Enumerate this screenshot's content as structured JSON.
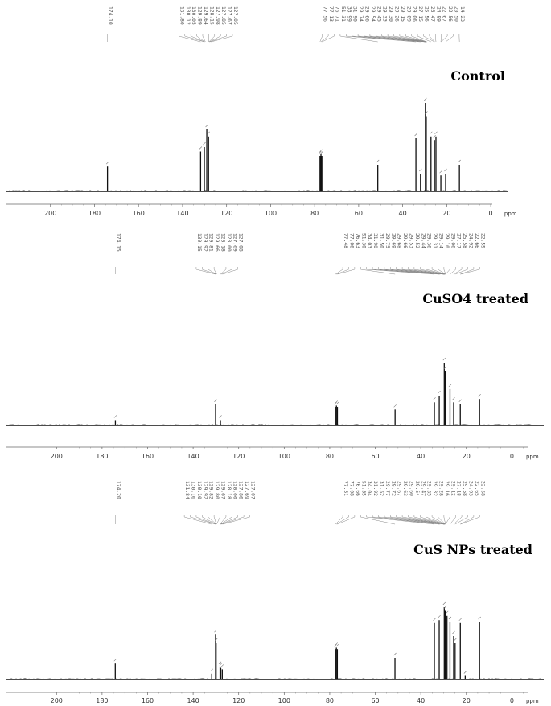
{
  "chart_data": [
    {
      "type": "line",
      "title": "Control",
      "x_unit_label": "ppm",
      "xlim": [
        220,
        -8
      ],
      "x_ticks": [
        "200",
        "180",
        "160",
        "140",
        "120",
        "100",
        "80",
        "60",
        "40",
        "20",
        "0"
      ],
      "grid": false,
      "peak_labels_left": [
        "174.10"
      ],
      "peak_labels_mid": [
        "131.80",
        "130.12",
        "130.05",
        "129.89",
        "129.64",
        "128.15",
        "127.98",
        "127.85",
        "127.67",
        "127.05"
      ],
      "peak_labels_right": [
        "77.56",
        "77.13",
        "76.71",
        "51.31",
        "33.99",
        "31.90",
        "29.74",
        "29.66",
        "29.54",
        "29.45",
        "29.33",
        "29.30",
        "29.26",
        "29.15",
        "29.09",
        "29.06",
        "27.15",
        "25.56",
        "25.47",
        "24.89",
        "22.67",
        "22.56",
        "20.50",
        "14.23"
      ],
      "peaks": [
        {
          "x": 174.1,
          "y": 0.28
        },
        {
          "x": 131.8,
          "y": 0.45
        },
        {
          "x": 130.1,
          "y": 0.5
        },
        {
          "x": 129.0,
          "y": 0.7
        },
        {
          "x": 128.2,
          "y": 0.62
        },
        {
          "x": 77.56,
          "y": 0.4
        },
        {
          "x": 77.13,
          "y": 0.42
        },
        {
          "x": 76.71,
          "y": 0.4
        },
        {
          "x": 51.31,
          "y": 0.3
        },
        {
          "x": 33.99,
          "y": 0.6
        },
        {
          "x": 31.9,
          "y": 0.2
        },
        {
          "x": 29.7,
          "y": 1.0
        },
        {
          "x": 29.3,
          "y": 0.85
        },
        {
          "x": 27.15,
          "y": 0.62
        },
        {
          "x": 25.56,
          "y": 0.58
        },
        {
          "x": 24.89,
          "y": 0.62
        },
        {
          "x": 22.67,
          "y": 0.18
        },
        {
          "x": 20.5,
          "y": 0.2
        },
        {
          "x": 14.23,
          "y": 0.3
        }
      ]
    },
    {
      "type": "line",
      "title": "CuSO4 treated",
      "x_unit_label": "ppm",
      "xlim": [
        222,
        -14
      ],
      "x_ticks": [
        "200",
        "180",
        "160",
        "140",
        "120",
        "100",
        "80",
        "60",
        "40",
        "20",
        "0"
      ],
      "grid": false,
      "peak_labels_left": [
        "174.15"
      ],
      "peak_labels_mid": [
        "130.15",
        "129.92",
        "129.81",
        "129.66",
        "128.18",
        "128.00",
        "127.69",
        "127.08"
      ],
      "peak_labels_right": [
        "77.48",
        "77.06",
        "76.63",
        "51.30",
        "34.03",
        "31.90",
        "31.50",
        "29.75",
        "29.69",
        "29.68",
        "29.66",
        "29.53",
        "29.52",
        "29.44",
        "29.36",
        "29.31",
        "29.14",
        "29.10",
        "29.06",
        "27.17",
        "25.58",
        "24.92",
        "22.66",
        "22.55"
      ],
      "peaks": [
        {
          "x": 174.15,
          "y": 0.08
        },
        {
          "x": 130.15,
          "y": 0.32
        },
        {
          "x": 128.0,
          "y": 0.08
        },
        {
          "x": 77.48,
          "y": 0.28
        },
        {
          "x": 77.06,
          "y": 0.3
        },
        {
          "x": 76.63,
          "y": 0.28
        },
        {
          "x": 51.3,
          "y": 0.24
        },
        {
          "x": 34.03,
          "y": 0.35
        },
        {
          "x": 31.9,
          "y": 0.45
        },
        {
          "x": 29.7,
          "y": 0.95
        },
        {
          "x": 29.3,
          "y": 0.82
        },
        {
          "x": 27.17,
          "y": 0.55
        },
        {
          "x": 25.58,
          "y": 0.35
        },
        {
          "x": 22.66,
          "y": 0.32
        },
        {
          "x": 14.2,
          "y": 0.4
        }
      ]
    },
    {
      "type": "line",
      "title": "CuS NPs treated",
      "x_unit_label": "ppm",
      "xlim": [
        222,
        -14
      ],
      "x_ticks": [
        "200",
        "180",
        "160",
        "140",
        "120",
        "100",
        "80",
        "60",
        "40",
        "20",
        "0"
      ],
      "grid": false,
      "peak_labels_left": [
        "174.20"
      ],
      "peak_labels_mid": [
        "131.84",
        "130.16",
        "130.10",
        "129.92",
        "129.82",
        "129.80",
        "129.67",
        "128.18",
        "128.00",
        "127.86",
        "127.69",
        "127.07"
      ],
      "peak_labels_right": [
        "77.51",
        "77.08",
        "76.66",
        "51.35",
        "34.04",
        "31.92",
        "31.52",
        "29.77",
        "29.72",
        "29.67",
        "29.63",
        "29.60",
        "29.54",
        "29.47",
        "29.35",
        "29.32",
        "29.28",
        "29.16",
        "29.12",
        "27.18",
        "25.58",
        "24.93",
        "22.65",
        "22.58"
      ],
      "peaks": [
        {
          "x": 174.2,
          "y": 0.22
        },
        {
          "x": 131.84,
          "y": 0.08
        },
        {
          "x": 130.16,
          "y": 0.62
        },
        {
          "x": 129.9,
          "y": 0.5
        },
        {
          "x": 128.18,
          "y": 0.18
        },
        {
          "x": 127.86,
          "y": 0.16
        },
        {
          "x": 127.2,
          "y": 0.14
        },
        {
          "x": 77.51,
          "y": 0.42
        },
        {
          "x": 77.08,
          "y": 0.44
        },
        {
          "x": 76.66,
          "y": 0.42
        },
        {
          "x": 51.35,
          "y": 0.3
        },
        {
          "x": 34.04,
          "y": 0.78
        },
        {
          "x": 31.92,
          "y": 0.82
        },
        {
          "x": 29.7,
          "y": 1.0
        },
        {
          "x": 29.3,
          "y": 0.95
        },
        {
          "x": 28.5,
          "y": 0.88
        },
        {
          "x": 27.18,
          "y": 0.8
        },
        {
          "x": 25.58,
          "y": 0.6
        },
        {
          "x": 24.93,
          "y": 0.5
        },
        {
          "x": 22.65,
          "y": 0.78
        },
        {
          "x": 20.5,
          "y": 0.05
        },
        {
          "x": 14.2,
          "y": 0.8
        }
      ]
    }
  ]
}
